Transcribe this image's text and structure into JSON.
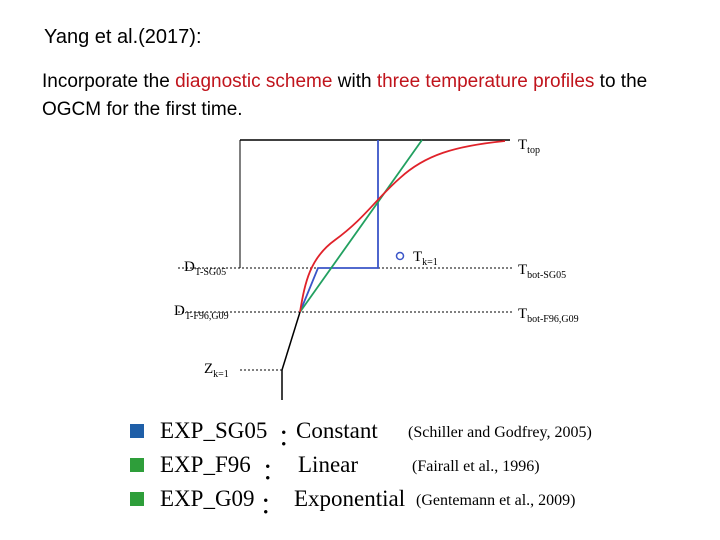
{
  "title": "Yang et al.(2017):",
  "intro": {
    "t1": " Incorporate the ",
    "h1": "diagnostic scheme",
    "t2": " with ",
    "h2": "three temperature profiles",
    "t3": " to the OGCM for the first time."
  },
  "diagram": {
    "labels": {
      "t_top_main": "T",
      "t_top_sub": "top",
      "t_k1_main": "T",
      "t_k1_sub": "k=1",
      "t_bot_sg_main": "T",
      "t_bot_sg_sub": "bot-SG05",
      "t_bot_f96_main": "T",
      "t_bot_f96_sub": "bot-F96,G09",
      "d_sg_main": "D",
      "d_sg_sub": "T-SG05",
      "d_f96_main": "D",
      "d_f96_sub": "T-F96,G09",
      "z_main": "Z",
      "z_sub": "k=1"
    },
    "colors": {
      "constant": "#3a55c8",
      "linear": "#22a060",
      "exponential": "#e0222a"
    }
  },
  "legend": [
    {
      "exp": "EXP_SG05",
      "colon": "：",
      "scheme": "Constant",
      "ref": "(Schiller and Godfrey, 2005)",
      "bullet_color": "#1f5fa8"
    },
    {
      "exp": "EXP_F96",
      "colon": "：",
      "scheme": "Linear",
      "ref": "(Fairall et al., 1996)",
      "bullet_color": "#2e9e3a"
    },
    {
      "exp": "EXP_G09",
      "colon": "：",
      "scheme": "Exponential",
      "ref": "(Gentemann et al., 2009)",
      "bullet_color": "#2e9e3a"
    }
  ]
}
